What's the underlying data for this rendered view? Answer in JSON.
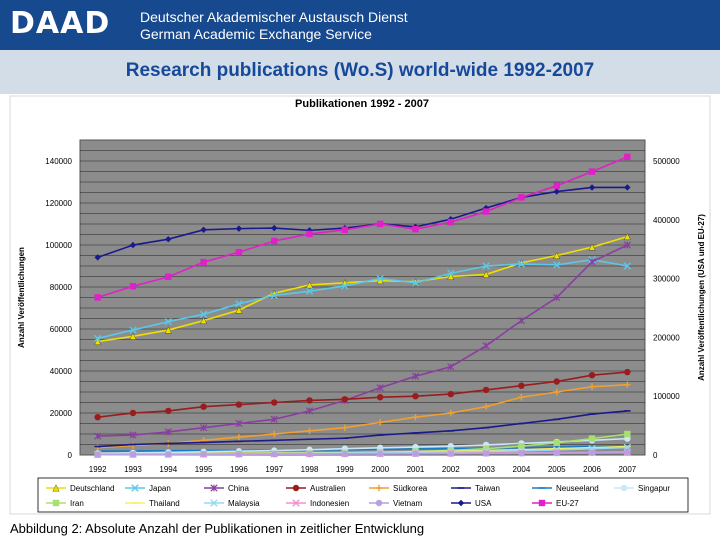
{
  "header": {
    "logo": "DAAD",
    "org_line1": "Deutscher Akademischer Austausch Dienst",
    "org_line2": "German Academic Exchange Service"
  },
  "slide_title": "Research publications (Wo.S) world-wide 1992-2007",
  "caption": "Abbildung 2: Absolute Anzahl der Publikationen in zeitlicher Entwicklung",
  "chart_data": {
    "type": "line",
    "title": "Publikationen 1992 - 2007",
    "ylabel": "Anzahl Veröffentlichungen",
    "y2label": "Anzahl Veröffentlichungen (USA und EU-27)",
    "ylim": [
      0,
      150000
    ],
    "y2lim": [
      0,
      535714
    ],
    "yticks": [
      "0",
      "20000",
      "40000",
      "60000",
      "80000",
      "100000",
      "120000",
      "140000"
    ],
    "y2ticks": [
      "0",
      "100000",
      "200000",
      "300000",
      "400000",
      "500000"
    ],
    "x": [
      "1992",
      "1993",
      "1994",
      "1995",
      "1996",
      "1997",
      "1998",
      "1999",
      "2000",
      "2001",
      "2002",
      "2003",
      "2004",
      "2005",
      "2006",
      "2007"
    ],
    "series": [
      {
        "name": "Deutschland",
        "color": "#f0e000",
        "marker": "triangle",
        "axis": "left",
        "values": [
          54000,
          56500,
          59500,
          64000,
          69000,
          77000,
          81000,
          82000,
          83000,
          82500,
          85000,
          86000,
          91500,
          95000,
          99000,
          104000
        ]
      },
      {
        "name": "Japan",
        "color": "#5bc8e8",
        "marker": "x",
        "axis": "left",
        "values": [
          55500,
          59500,
          63500,
          67000,
          72000,
          76000,
          78000,
          80500,
          84000,
          82000,
          86500,
          90000,
          91000,
          90500,
          93000,
          90000
        ]
      },
      {
        "name": "China",
        "color": "#8a3ea0",
        "marker": "star",
        "axis": "left",
        "values": [
          9000,
          9500,
          11000,
          13000,
          15000,
          17000,
          21000,
          26000,
          32000,
          37500,
          42000,
          52000,
          64000,
          75000,
          92000,
          100000
        ]
      },
      {
        "name": "Australien",
        "color": "#9a1c1c",
        "marker": "circle",
        "axis": "left",
        "values": [
          18000,
          20000,
          21000,
          23000,
          24000,
          25000,
          26000,
          26500,
          27500,
          28000,
          29000,
          31000,
          33000,
          35000,
          38000,
          39500
        ]
      },
      {
        "name": "Südkorea",
        "color": "#f0a030",
        "marker": "plus",
        "axis": "left",
        "values": [
          3500,
          4500,
          5500,
          7000,
          8500,
          10000,
          11500,
          13000,
          15500,
          18000,
          20000,
          23000,
          27500,
          30000,
          32500,
          33500
        ]
      },
      {
        "name": "Taiwan",
        "color": "#1a1a8c",
        "marker": "dash",
        "axis": "left",
        "values": [
          4000,
          5000,
          5500,
          6000,
          6500,
          7000,
          7500,
          8000,
          9500,
          10500,
          11500,
          13000,
          15000,
          17000,
          19500,
          21000
        ]
      },
      {
        "name": "Neuseeland",
        "color": "#1a7ac8",
        "marker": "dash",
        "axis": "left",
        "values": [
          1800,
          1900,
          2000,
          2100,
          2200,
          2300,
          2400,
          2500,
          2700,
          2900,
          3000,
          3200,
          3500,
          3800,
          4000,
          4300
        ]
      },
      {
        "name": "Singapur",
        "color": "#c8e8f8",
        "marker": "circle",
        "axis": "left",
        "values": [
          800,
          1000,
          1200,
          1500,
          1800,
          2100,
          2500,
          3000,
          3400,
          3800,
          4200,
          4800,
          5500,
          6200,
          7000,
          7800
        ]
      },
      {
        "name": "Iran",
        "color": "#a8e070",
        "marker": "square",
        "axis": "left",
        "values": [
          200,
          250,
          300,
          400,
          500,
          600,
          800,
          1000,
          1300,
          1700,
          2200,
          3000,
          4200,
          5800,
          7800,
          10000
        ]
      },
      {
        "name": "Thailand",
        "color": "#f8f060",
        "marker": "dash",
        "axis": "left",
        "values": [
          500,
          550,
          600,
          700,
          800,
          900,
          1000,
          1100,
          1300,
          1500,
          1800,
          2100,
          2500,
          3000,
          3500,
          4000
        ]
      },
      {
        "name": "Malaysia",
        "color": "#9ad8f0",
        "marker": "x",
        "axis": "left",
        "values": [
          400,
          450,
          500,
          550,
          600,
          700,
          800,
          900,
          1100,
          1300,
          1500,
          1700,
          2000,
          2400,
          3000,
          3600
        ]
      },
      {
        "name": "Indonesien",
        "color": "#f090d0",
        "marker": "x",
        "axis": "left",
        "values": [
          300,
          320,
          350,
          400,
          450,
          500,
          550,
          600,
          650,
          700,
          800,
          900,
          1000,
          1100,
          1300,
          1500
        ]
      },
      {
        "name": "Vietnam",
        "color": "#b8a0e0",
        "marker": "circle",
        "axis": "left",
        "values": [
          200,
          220,
          250,
          280,
          320,
          360,
          400,
          450,
          500,
          550,
          600,
          700,
          800,
          900,
          1000,
          1100
        ]
      },
      {
        "name": "USA",
        "color": "#1a1a8c",
        "marker": "diamond",
        "axis": "right",
        "values": [
          336000,
          357000,
          367000,
          383000,
          385000,
          386000,
          382000,
          386000,
          393000,
          388000,
          401000,
          420000,
          438000,
          448000,
          455000,
          455000
        ]
      },
      {
        "name": "EU-27",
        "color": "#e020c8",
        "marker": "square",
        "axis": "right",
        "values": [
          268000,
          287000,
          303000,
          328000,
          345000,
          364000,
          376000,
          383000,
          393000,
          384000,
          396000,
          414000,
          438000,
          458000,
          482000,
          507000
        ]
      }
    ],
    "legend": [
      "Deutschland",
      "Japan",
      "China",
      "Australien",
      "Südkorea",
      "Taiwan",
      "Neuseeland",
      "Singapur",
      "Iran",
      "Thailand",
      "Malaysia",
      "Indonesien",
      "Vietnam",
      "USA",
      "EU-27"
    ]
  }
}
